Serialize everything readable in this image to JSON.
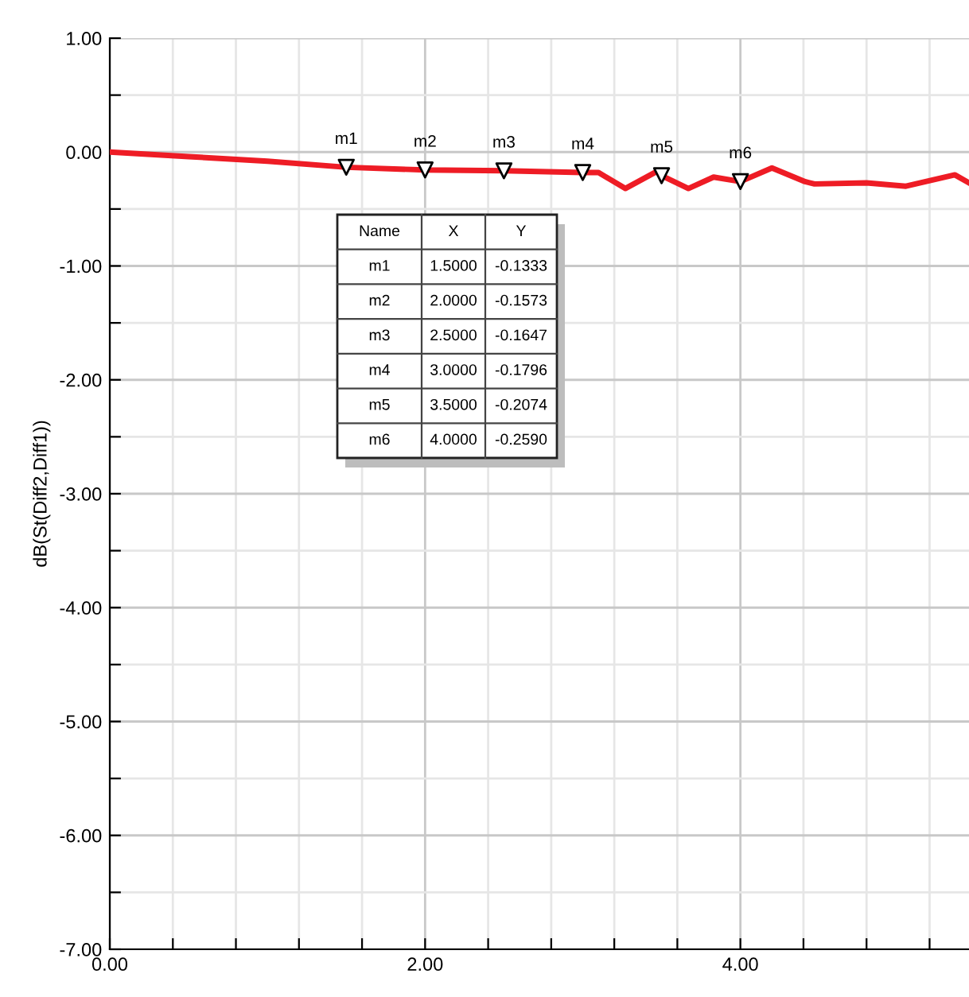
{
  "chart_data": {
    "type": "line",
    "ylabel": "dB(St(Diff2,Diff1))",
    "xlim": [
      0,
      5.45
    ],
    "ylim": [
      -7,
      1
    ],
    "xticks": [
      {
        "value": 0,
        "label": "0.00"
      },
      {
        "value": 0.4,
        "label": null
      },
      {
        "value": 0.8,
        "label": null
      },
      {
        "value": 1.2,
        "label": null
      },
      {
        "value": 1.6,
        "label": null
      },
      {
        "value": 2,
        "label": "2.00"
      },
      {
        "value": 2.4,
        "label": null
      },
      {
        "value": 2.8,
        "label": null
      },
      {
        "value": 3.2,
        "label": null
      },
      {
        "value": 3.6,
        "label": null
      },
      {
        "value": 4,
        "label": "4.00"
      },
      {
        "value": 4.4,
        "label": null
      },
      {
        "value": 4.8,
        "label": null
      },
      {
        "value": 5.2,
        "label": null
      }
    ],
    "yticks": [
      {
        "value": -7,
        "label": "-7.00"
      },
      {
        "value": -6.5,
        "label": null
      },
      {
        "value": -6,
        "label": "-6.00"
      },
      {
        "value": -5.5,
        "label": null
      },
      {
        "value": -5,
        "label": "-5.00"
      },
      {
        "value": -4.5,
        "label": null
      },
      {
        "value": -4,
        "label": "-4.00"
      },
      {
        "value": -3.5,
        "label": null
      },
      {
        "value": -3,
        "label": "-3.00"
      },
      {
        "value": -2.5,
        "label": null
      },
      {
        "value": -2,
        "label": "-2.00"
      },
      {
        "value": -1.5,
        "label": null
      },
      {
        "value": -1,
        "label": "-1.00"
      },
      {
        "value": -0.5,
        "label": null
      },
      {
        "value": 0,
        "label": "0.00"
      },
      {
        "value": 0.5,
        "label": null
      },
      {
        "value": 1,
        "label": "1.00"
      }
    ],
    "grid": true,
    "series": [
      {
        "color": "#ee1c25",
        "x": [
          0,
          0.5,
          1.0,
          1.5,
          2.0,
          2.5,
          3.0,
          3.1,
          3.27,
          3.47,
          3.5,
          3.67,
          3.83,
          4.0,
          4.2,
          4.41,
          4.47,
          4.8,
          5.05,
          5.36,
          5.45
        ],
        "values": [
          0,
          -0.04,
          -0.08,
          -0.1333,
          -0.1573,
          -0.1647,
          -0.1796,
          -0.18,
          -0.32,
          -0.17,
          -0.2074,
          -0.32,
          -0.22,
          -0.259,
          -0.14,
          -0.26,
          -0.28,
          -0.27,
          -0.3,
          -0.2,
          -0.27
        ]
      },
      {
        "type": "scatter",
        "marker": "triangle",
        "color": "#000000",
        "x": [
          1.5,
          2.0,
          2.5,
          3.0,
          3.5,
          4.0
        ],
        "values": [
          -0.1333,
          -0.1573,
          -0.1647,
          -0.1796,
          -0.2074,
          -0.259
        ]
      }
    ],
    "annotations": [
      "Name",
      "X",
      "Y",
      "1.5000",
      "2.0000",
      "2.5000",
      "3.0000",
      "3.5000",
      "4.0000",
      "-0.1333",
      "-0.1573",
      "-0.1647",
      "-0.1796",
      "-0.2074",
      "-0.2590",
      {
        "text": "m1",
        "x": 1.5,
        "y": -0.1333
      },
      {
        "text": "m2",
        "x": 2.0,
        "y": -0.1573
      },
      {
        "text": "m3",
        "x": 2.5,
        "y": -0.1647
      },
      {
        "text": "m4",
        "x": 3.0,
        "y": -0.1796
      },
      {
        "text": "m5",
        "x": 3.5,
        "y": -0.2074
      },
      {
        "text": "m6",
        "x": 4.0,
        "y": -0.259
      }
    ]
  }
}
